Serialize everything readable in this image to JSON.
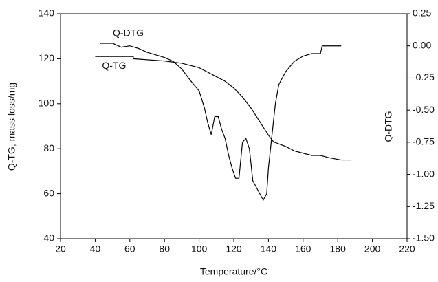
{
  "chart_data": {
    "type": "line",
    "x_label": "Temperature/°C",
    "y_label": "Q-TG, mass loss/mg",
    "y2_label": "Q-DTG",
    "xlim": [
      20,
      220
    ],
    "xticks": [
      20,
      40,
      60,
      80,
      100,
      120,
      140,
      160,
      180,
      200,
      220
    ],
    "ylim": [
      40,
      140
    ],
    "yticks": [
      40,
      60,
      80,
      100,
      120,
      140
    ],
    "y2lim": [
      -1.5,
      0.25
    ],
    "y2ticks": [
      {
        "value": 0.25,
        "label": "0.25"
      },
      {
        "value": 0,
        "label": "0.00"
      },
      {
        "value": -0.25,
        "label": "-0.25"
      },
      {
        "value": -0.5,
        "label": "-0.50"
      },
      {
        "value": -0.75,
        "label": "-0.75"
      },
      {
        "value": -1,
        "label": "-1.00"
      },
      {
        "value": -1.25,
        "label": "-1.25"
      },
      {
        "value": -1.5,
        "label": "-1.50"
      }
    ],
    "series": [
      {
        "name": "Q-TG",
        "color": "#000000",
        "x": [
          40,
          62,
          62,
          80,
          90,
          95,
          100,
          105,
          110,
          115,
          120,
          125,
          130,
          135,
          140,
          143,
          150,
          155,
          160,
          165,
          170,
          175,
          182,
          188
        ],
        "values": [
          121,
          121,
          120,
          119,
          118,
          117,
          116,
          114,
          112,
          110,
          107,
          103,
          98,
          92,
          86,
          83,
          81,
          79,
          78,
          77,
          77,
          76,
          75,
          75
        ]
      },
      {
        "name": "Q-DTG",
        "color": "#000000",
        "axis": "y2",
        "x": [
          43,
          50,
          55,
          60,
          65,
          70,
          75,
          80,
          85,
          90,
          95,
          100,
          103,
          105,
          107,
          109,
          111,
          113,
          115,
          117,
          119,
          121,
          123,
          125,
          127,
          129,
          131,
          133,
          135,
          137,
          139,
          140,
          142,
          144,
          146,
          150,
          155,
          160,
          165,
          170,
          171,
          182
        ],
        "values": [
          0.02,
          0.02,
          -0.01,
          0,
          -0.02,
          -0.05,
          -0.07,
          -0.09,
          -0.12,
          -0.18,
          -0.27,
          -0.35,
          -0.48,
          -0.6,
          -0.69,
          -0.55,
          -0.55,
          -0.65,
          -0.72,
          -0.85,
          -0.95,
          -1.03,
          -1.03,
          -0.75,
          -0.72,
          -0.8,
          -1.05,
          -1.1,
          -1.15,
          -1.2,
          -1.15,
          -0.95,
          -0.7,
          -0.45,
          -0.3,
          -0.2,
          -0.12,
          -0.08,
          -0.06,
          -0.06,
          0,
          0
        ]
      }
    ]
  }
}
